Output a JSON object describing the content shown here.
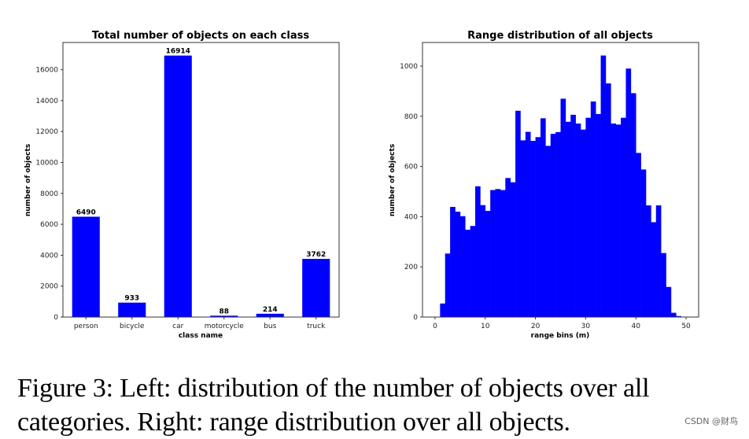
{
  "chart_data": [
    {
      "type": "bar",
      "title": "Total number of objects on each class",
      "xlabel": "class name",
      "ylabel": "number of objects",
      "categories": [
        "person",
        "bicycle",
        "car",
        "motorcycle",
        "bus",
        "truck"
      ],
      "values": [
        6490,
        933,
        16914,
        88,
        214,
        3762
      ],
      "data_labels": [
        "6490",
        "933",
        "16914",
        "88",
        "214",
        "3762"
      ],
      "yticks": [
        0,
        2000,
        4000,
        6000,
        8000,
        10000,
        12000,
        14000,
        16000
      ],
      "ylim": [
        0,
        17760
      ],
      "grid": false,
      "color": "#0000ff"
    },
    {
      "type": "bar",
      "subtype": "histogram",
      "title": "Range distribution of all objects",
      "xlabel": "range bins (m)",
      "ylabel": "number of objects",
      "bin_width": 1,
      "bin_start": 1,
      "values": [
        54,
        253,
        439,
        420,
        402,
        348,
        363,
        521,
        446,
        423,
        506,
        510,
        506,
        554,
        537,
        822,
        704,
        738,
        702,
        717,
        792,
        682,
        730,
        737,
        870,
        778,
        806,
        771,
        747,
        794,
        859,
        809,
        1042,
        931,
        771,
        767,
        794,
        990,
        892,
        654,
        588,
        445,
        378,
        445,
        255,
        120,
        17,
        4
      ],
      "xticks": [
        0,
        10,
        20,
        30,
        40,
        50
      ],
      "yticks": [
        0,
        200,
        400,
        600,
        800,
        1000
      ],
      "xlim": [
        -2.5,
        52.5
      ],
      "ylim": [
        0,
        1094
      ],
      "grid": false,
      "color": "#0000ff"
    }
  ],
  "caption": "Figure 3: Left: distribution of the number of objects over all categories. Right: range distribution over all objects.",
  "watermark": "CSDN @财鸟"
}
